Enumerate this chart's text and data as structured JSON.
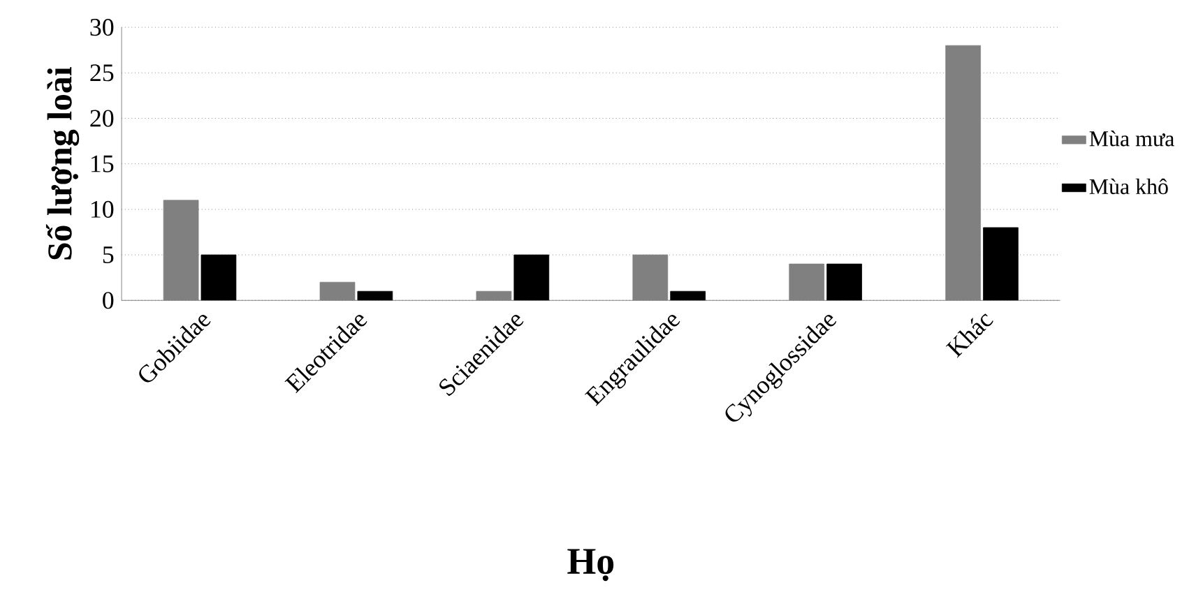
{
  "chart_data": {
    "type": "bar",
    "xlabel": "Họ",
    "ylabel": "Số lượng loài",
    "categories": [
      "Gobiidae",
      "Eleotridae",
      "Sciaenidae",
      "Engraulidae",
      "Cynoglossidae",
      "Khác"
    ],
    "series": [
      {
        "name": "Mùa mưa",
        "color": "#808080",
        "values": [
          11,
          2,
          1,
          5,
          4,
          28
        ]
      },
      {
        "name": "Mùa khô",
        "color": "#000000",
        "values": [
          5,
          1,
          5,
          1,
          4,
          8
        ]
      }
    ],
    "ylim": [
      0,
      30
    ],
    "yticks": [
      0,
      5,
      10,
      15,
      20,
      25,
      30
    ],
    "grid": "y",
    "legend": "right"
  }
}
